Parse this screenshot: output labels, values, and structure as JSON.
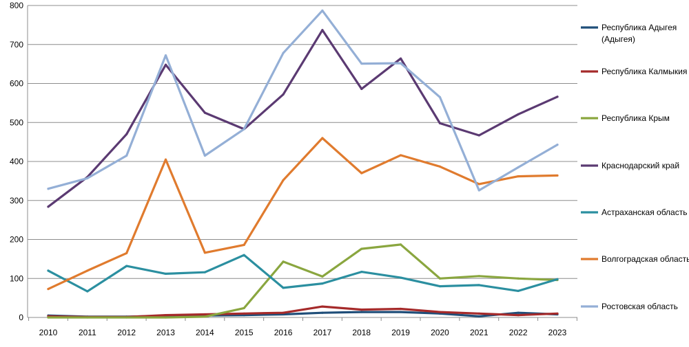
{
  "chart_data": {
    "type": "line",
    "title": "",
    "xlabel": "",
    "ylabel": "",
    "ylim": [
      0,
      800
    ],
    "yticks": [
      0,
      100,
      200,
      300,
      400,
      500,
      600,
      700,
      800
    ],
    "grid": true,
    "legend_position": "right",
    "categories": [
      "2010",
      "2011",
      "2012",
      "2013",
      "2014",
      "2015",
      "2016",
      "2017",
      "2018",
      "2019",
      "2020",
      "2021",
      "2022",
      "2023"
    ],
    "series": [
      {
        "name_lines": [
          "Республика Адыгея",
          "(Адыгея)"
        ],
        "color": "#1f4e79",
        "values": [
          5,
          2,
          2,
          4,
          5,
          6,
          8,
          12,
          14,
          14,
          10,
          3,
          12,
          8
        ]
      },
      {
        "name_lines": [
          "Республика Калмыкия"
        ],
        "color": "#a52a2a",
        "values": [
          3,
          1,
          1,
          6,
          8,
          10,
          12,
          28,
          20,
          22,
          14,
          10,
          6,
          10
        ]
      },
      {
        "name_lines": [
          "Республика Крым"
        ],
        "color": "#8aa63f",
        "values": [
          0,
          0,
          0,
          0,
          2,
          24,
          143,
          105,
          176,
          187,
          100,
          106,
          100,
          96
        ]
      },
      {
        "name_lines": [
          "Краснодарский край"
        ],
        "color": "#5b3a72",
        "values": [
          284,
          360,
          470,
          648,
          525,
          483,
          572,
          737,
          586,
          664,
          498,
          467,
          521,
          566
        ]
      },
      {
        "name_lines": [
          "Астраханская область"
        ],
        "color": "#2b8fa0",
        "values": [
          120,
          67,
          132,
          112,
          116,
          160,
          76,
          87,
          117,
          102,
          80,
          83,
          68,
          98
        ]
      },
      {
        "name_lines": [
          "Волгоградская область"
        ],
        "color": "#e07b2e",
        "values": [
          73,
          120,
          165,
          405,
          166,
          186,
          352,
          460,
          370,
          416,
          387,
          342,
          362,
          364
        ]
      },
      {
        "name_lines": [
          "Ростовская область"
        ],
        "color": "#94afd6",
        "values": [
          330,
          357,
          415,
          672,
          415,
          483,
          678,
          787,
          651,
          652,
          565,
          326,
          385,
          443
        ]
      }
    ]
  }
}
